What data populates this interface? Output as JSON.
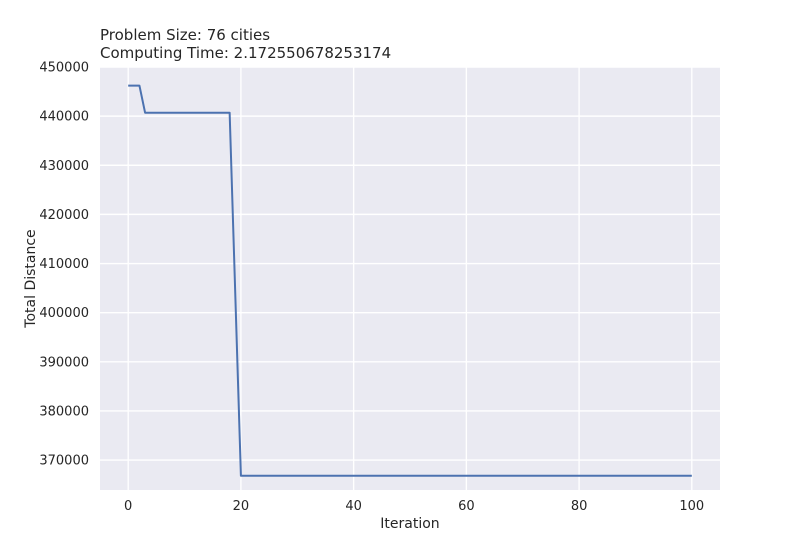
{
  "chart_data": {
    "type": "line",
    "title_lines": [
      "Problem Size: 76 cities",
      "Computing Time: 2.172550678253174"
    ],
    "xlabel": "Iteration",
    "ylabel": "Total Distance",
    "xlim": [
      -5,
      105
    ],
    "ylim": [
      363900,
      450000
    ],
    "xticks": [
      0,
      20,
      40,
      60,
      80,
      100
    ],
    "yticks": [
      370000,
      380000,
      390000,
      400000,
      410000,
      420000,
      430000,
      440000,
      450000
    ],
    "grid": true,
    "background": "#eaeaf2",
    "series": [
      {
        "color": "#4c72b0",
        "x": [
          0,
          2,
          3,
          18,
          20,
          100
        ],
        "y": [
          446200,
          446200,
          440700,
          440700,
          366800,
          366800
        ]
      }
    ]
  }
}
